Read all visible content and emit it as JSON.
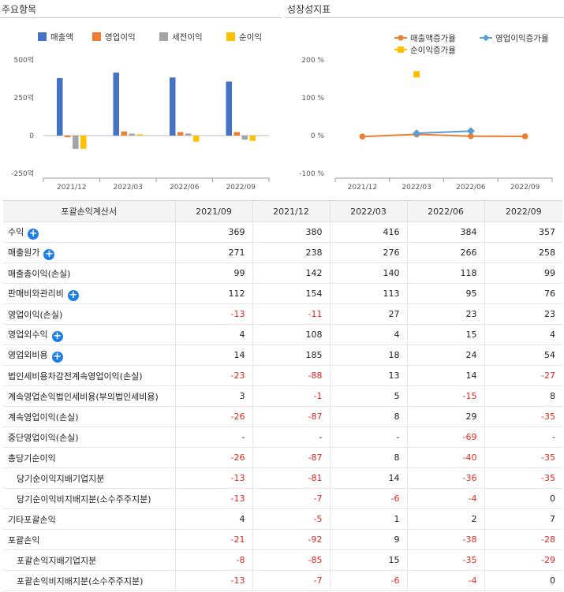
{
  "left_chart": {
    "title": "주요항목",
    "colors": {
      "매출액": "#4472c4",
      "영업이익": "#ed7d31",
      "세전이익": "#a5a5a5",
      "순이익": "#ffc000"
    },
    "chart_data": {
      "type": "bar",
      "categories": [
        "2021/12",
        "2022/03",
        "2022/06",
        "2022/09"
      ],
      "series": [
        {
          "name": "매출액",
          "values": [
            380,
            416,
            384,
            357
          ]
        },
        {
          "name": "영업이익",
          "values": [
            -11,
            27,
            23,
            23
          ]
        },
        {
          "name": "세전이익",
          "values": [
            -88,
            13,
            14,
            -27
          ]
        },
        {
          "name": "순이익",
          "values": [
            -87,
            8,
            -40,
            -35
          ]
        }
      ],
      "yticks": [
        "500억",
        "250억",
        "0",
        "-250억"
      ],
      "ylim": [
        -250,
        500
      ],
      "legend": "top",
      "grid": false
    }
  },
  "right_chart": {
    "title": "성장성지표",
    "colors": {
      "매출액증가율": "#ed7d31",
      "영업이익증가율": "#5b9bd5",
      "순이익증가율": "#ffc000"
    },
    "chart_data": {
      "type": "line",
      "categories": [
        "2021/12",
        "2022/03",
        "2022/06",
        "2022/09"
      ],
      "series": [
        {
          "name": "매출액증가율",
          "values": [
            -2.5,
            3.0,
            -1.5,
            -2.0
          ]
        },
        {
          "name": "영업이익증가율",
          "values": [
            null,
            6.0,
            12.0,
            null
          ]
        },
        {
          "name": "순이익증가율",
          "values": [
            null,
            162,
            null,
            null
          ]
        }
      ],
      "yticks": [
        "200 %",
        "100 %",
        "0 %",
        "-100 %"
      ],
      "ylim": [
        -100,
        200
      ],
      "legend": "top",
      "grid": false
    }
  },
  "table": {
    "headers": [
      "포괄손익계산서",
      "2021/09",
      "2021/12",
      "2022/03",
      "2022/06",
      "2022/09"
    ],
    "plus_symbol": "+",
    "rows": [
      {
        "label": "수익",
        "expand": true,
        "indent": false,
        "values": [
          "369",
          "380",
          "416",
          "384",
          "357"
        ]
      },
      {
        "label": "매출원가",
        "expand": true,
        "indent": false,
        "values": [
          "271",
          "238",
          "276",
          "266",
          "258"
        ]
      },
      {
        "label": "매출총이익(손실)",
        "expand": false,
        "indent": false,
        "values": [
          "99",
          "142",
          "140",
          "118",
          "99"
        ]
      },
      {
        "label": "판매비와관리비",
        "expand": true,
        "indent": false,
        "values": [
          "112",
          "154",
          "113",
          "95",
          "76"
        ]
      },
      {
        "label": "영업이익(손실)",
        "expand": false,
        "indent": false,
        "values": [
          "-13",
          "-11",
          "27",
          "23",
          "23"
        ]
      },
      {
        "label": "영업외수익",
        "expand": true,
        "indent": false,
        "values": [
          "4",
          "108",
          "4",
          "15",
          "4"
        ]
      },
      {
        "label": "영업외비용",
        "expand": true,
        "indent": false,
        "values": [
          "14",
          "185",
          "18",
          "24",
          "54"
        ]
      },
      {
        "label": "법인세비용차감전계속영업이익(손실)",
        "expand": false,
        "indent": false,
        "values": [
          "-23",
          "-88",
          "13",
          "14",
          "-27"
        ]
      },
      {
        "label": "계속영업손익법인세비용(부의법인세비용)",
        "expand": false,
        "indent": false,
        "values": [
          "3",
          "-1",
          "5",
          "-15",
          "8"
        ]
      },
      {
        "label": "계속영업이익(손실)",
        "expand": false,
        "indent": false,
        "values": [
          "-26",
          "-87",
          "8",
          "29",
          "-35"
        ]
      },
      {
        "label": "중단영업이익(손실)",
        "expand": false,
        "indent": false,
        "values": [
          "-",
          "-",
          "-",
          "-69",
          "-"
        ]
      },
      {
        "label": "총당기순이익",
        "expand": false,
        "indent": false,
        "values": [
          "-26",
          "-87",
          "8",
          "-40",
          "-35"
        ]
      },
      {
        "label": "당기순이익지배기업지분",
        "expand": false,
        "indent": true,
        "values": [
          "-13",
          "-81",
          "14",
          "-36",
          "-35"
        ]
      },
      {
        "label": "당기순이익비지배지분(소수주주지분)",
        "expand": false,
        "indent": true,
        "values": [
          "-13",
          "-7",
          "-6",
          "-4",
          "0"
        ]
      },
      {
        "label": "기타포괄손익",
        "expand": false,
        "indent": false,
        "values": [
          "4",
          "-5",
          "1",
          "2",
          "7"
        ]
      },
      {
        "label": "포괄손익",
        "expand": false,
        "indent": false,
        "values": [
          "-21",
          "-92",
          "9",
          "-38",
          "-28"
        ]
      },
      {
        "label": "포괄손익지배기업지분",
        "expand": false,
        "indent": true,
        "values": [
          "-8",
          "-85",
          "15",
          "-35",
          "-29"
        ]
      },
      {
        "label": "포괄손익비지배지분(소수주주지분)",
        "expand": false,
        "indent": true,
        "values": [
          "-13",
          "-7",
          "-6",
          "-4",
          "0"
        ]
      }
    ]
  }
}
